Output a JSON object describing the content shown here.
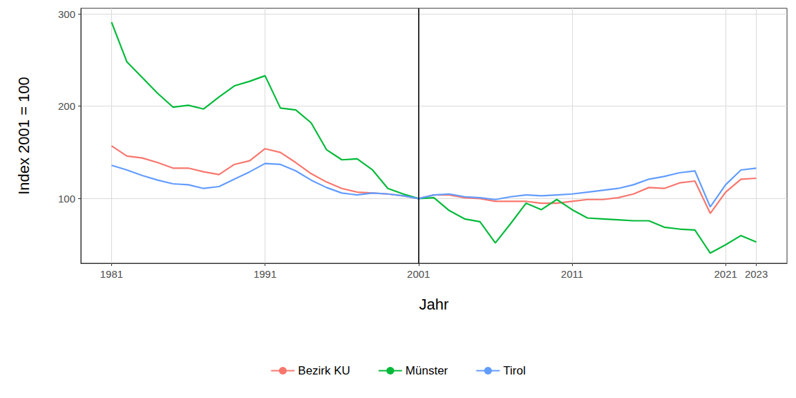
{
  "chart_data": {
    "type": "line",
    "x_label": "Jahr",
    "y_label": "Index 2001 = 100",
    "x": [
      1981,
      1982,
      1983,
      1984,
      1985,
      1986,
      1987,
      1988,
      1989,
      1990,
      1991,
      1992,
      1993,
      1994,
      1995,
      1996,
      1997,
      1998,
      1999,
      2000,
      2001,
      2002,
      2003,
      2004,
      2005,
      2006,
      2007,
      2008,
      2009,
      2010,
      2011,
      2012,
      2013,
      2014,
      2015,
      2016,
      2017,
      2018,
      2019,
      2020,
      2021,
      2022,
      2023
    ],
    "xlim": [
      1979,
      2025
    ],
    "xticks": [
      1981,
      1991,
      2001,
      2011,
      2021,
      2023
    ],
    "ylim": [
      30,
      306
    ],
    "yticks": [
      100,
      200,
      300
    ],
    "grid": true,
    "legend": "bottom",
    "reference_line": {
      "x": 2001,
      "color": "#000000"
    },
    "series": [
      {
        "name": "Bezirk KU",
        "color": "#F8766D",
        "values": [
          157,
          146,
          144,
          139,
          133,
          133,
          129,
          126,
          137,
          141,
          154,
          150,
          139,
          127,
          118,
          111,
          107,
          106,
          105,
          103,
          100,
          104,
          104,
          101,
          100,
          97,
          97,
          97,
          95,
          95,
          97,
          99,
          99,
          101,
          105,
          112,
          111,
          117,
          119,
          84,
          107,
          121,
          122
        ]
      },
      {
        "name": "Münster",
        "color": "#00BA38",
        "values": [
          291,
          248,
          231,
          214,
          199,
          201,
          197,
          210,
          222,
          227,
          233,
          198,
          196,
          182,
          153,
          142,
          143,
          131,
          111,
          105,
          100,
          101,
          87,
          78,
          75,
          52,
          73,
          95,
          88,
          99,
          88,
          79,
          78,
          77,
          76,
          76,
          69,
          67,
          66,
          41,
          50,
          60,
          53
        ]
      },
      {
        "name": "Tirol",
        "color": "#619CFF",
        "values": [
          136,
          131,
          125,
          120,
          116,
          115,
          111,
          113,
          121,
          129,
          138,
          137,
          130,
          120,
          112,
          106,
          104,
          106,
          105,
          103,
          100,
          104,
          105,
          102,
          101,
          99,
          102,
          104,
          103,
          104,
          105,
          107,
          109,
          111,
          115,
          121,
          124,
          128,
          130,
          91,
          115,
          131,
          133
        ]
      }
    ]
  }
}
